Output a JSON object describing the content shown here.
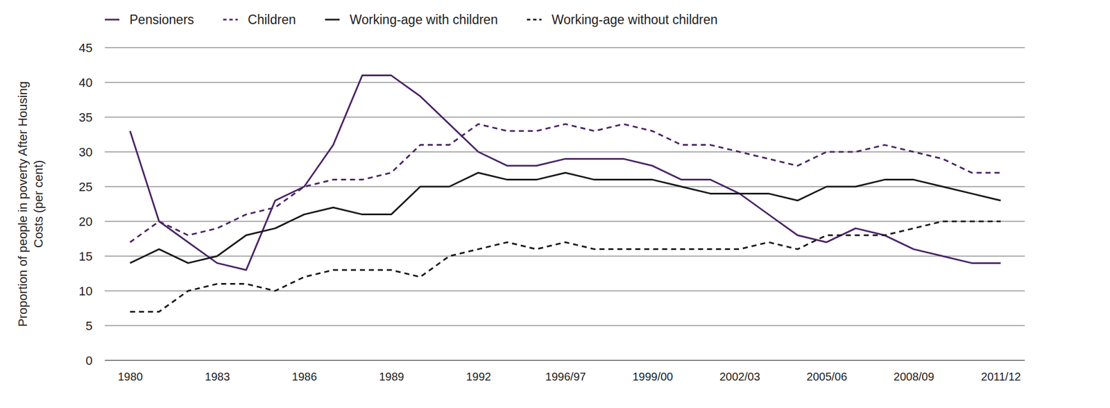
{
  "chart_data": {
    "type": "line",
    "y_label": "Proportion of people in poverty After Housing Costs (per cent)",
    "categories": [
      "1980",
      null,
      null,
      "1983",
      null,
      null,
      "1986",
      null,
      null,
      "1989",
      null,
      null,
      "1992",
      null,
      null,
      "1996/97",
      null,
      null,
      "1999/00",
      null,
      null,
      "2002/03",
      null,
      null,
      "2005/06",
      null,
      null,
      "2008/09",
      null,
      null,
      "2011/12"
    ],
    "series": [
      {
        "name": "Pensioners",
        "color": "#4a2466",
        "line_style": "solid",
        "values": [
          33,
          20,
          17,
          14,
          13,
          23,
          25,
          31,
          41,
          41,
          38,
          34,
          30,
          28,
          28,
          29,
          29,
          29,
          28,
          26,
          26,
          24,
          21,
          18,
          17,
          19,
          18,
          16,
          15,
          14,
          14
        ]
      },
      {
        "name": "Children",
        "color": "#4a2466",
        "line_style": "dashed",
        "values": [
          17,
          20,
          18,
          19,
          21,
          22,
          25,
          26,
          26,
          27,
          31,
          31,
          34,
          33,
          33,
          34,
          33,
          34,
          33,
          31,
          31,
          30,
          29,
          28,
          30,
          30,
          31,
          30,
          29,
          27,
          27
        ]
      },
      {
        "name": "Working-age with children",
        "color": "#1a1a1a",
        "line_style": "solid",
        "values": [
          14,
          16,
          14,
          15,
          18,
          19,
          21,
          22,
          21,
          21,
          25,
          25,
          27,
          26,
          26,
          27,
          26,
          26,
          26,
          25,
          24,
          24,
          24,
          23,
          25,
          25,
          26,
          26,
          25,
          24,
          23
        ]
      },
      {
        "name": "Working-age without children",
        "color": "#1a1a1a",
        "line_style": "dashed",
        "values": [
          7,
          7,
          10,
          11,
          11,
          10,
          12,
          13,
          13,
          13,
          12,
          15,
          16,
          17,
          16,
          17,
          16,
          16,
          16,
          16,
          16,
          16,
          17,
          16,
          18,
          18,
          18,
          19,
          20,
          20,
          20
        ]
      }
    ],
    "ylim": [
      0,
      45
    ],
    "yticks": [
      0,
      5,
      10,
      15,
      20,
      25,
      30,
      35,
      40,
      45
    ],
    "grid": true,
    "legend": "top"
  }
}
